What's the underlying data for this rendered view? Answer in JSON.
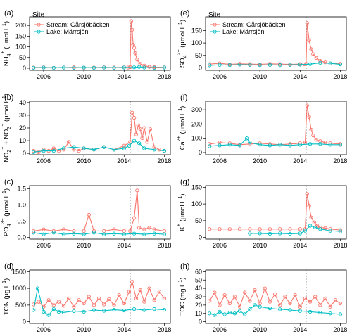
{
  "colors": {
    "stream": "#F8766D",
    "lake": "#00BFC4",
    "frame": "#000000",
    "event_line": "#000000"
  },
  "legend": {
    "title": "Site",
    "stream_label": "Stream: Gårsjöbäcken",
    "lake_label": "Lake: Märrsjön"
  },
  "chart_data": [
    {
      "type": "line",
      "label": "(a)",
      "ylabel": "NH4+ (µmol l−1)",
      "ylabel_parts": {
        "base": "NH",
        "sub": "4",
        "sup": "+",
        "unit": " (µmol l",
        "unit_sup": "−1",
        "end": ")"
      },
      "ylim": [
        -10,
        240
      ],
      "yticks": [
        0,
        50,
        100,
        150,
        200
      ],
      "xlim": [
        2004.6,
        2018.6
      ],
      "xticks": [
        2006,
        2010,
        2014,
        2018
      ],
      "event_x": 2014.6,
      "legend": "top-left",
      "series": [
        {
          "name": "Stream: Gårsjöbäcken",
          "color_key": "stream",
          "x": [
            2005,
            2006,
            2007,
            2008,
            2009,
            2010,
            2011,
            2012,
            2013,
            2014,
            2014.4,
            2014.6,
            2014.7,
            2014.8,
            2014.9,
            2015.0,
            2015.1,
            2015.3,
            2015.6,
            2016,
            2016.5,
            2017,
            2018
          ],
          "y": [
            3,
            4,
            2,
            3,
            4,
            2,
            3,
            4,
            3,
            4,
            3,
            5,
            220,
            180,
            110,
            95,
            70,
            40,
            20,
            12,
            6,
            5,
            4
          ]
        },
        {
          "name": "Lake: Märrsjön",
          "color_key": "lake",
          "x": [
            2005,
            2006,
            2007,
            2008,
            2009,
            2010,
            2011,
            2012,
            2013,
            2014,
            2015,
            2015.5,
            2016,
            2017,
            2018
          ],
          "y": [
            2,
            3,
            2,
            3,
            2,
            3,
            2,
            3,
            2,
            3,
            4,
            6,
            3,
            2,
            3
          ]
        }
      ]
    },
    {
      "type": "line",
      "label": "(b)",
      "ylabel": "NO2− + NO3− (µmol l−1)",
      "ylabel_parts": {
        "base": "NO",
        "sub": "2",
        "sup": "−",
        "mid": " + NO",
        "sub2": "3",
        "sup2": "−"
      },
      "ylim": [
        -1,
        41
      ],
      "yticks": [
        0,
        10,
        20,
        30,
        40
      ],
      "xlim": [
        2004.6,
        2018.6
      ],
      "xticks": [
        2006,
        2010,
        2014,
        2018
      ],
      "event_x": 2014.6,
      "series": [
        {
          "name": "Stream: Gårsjöbäcken",
          "color_key": "stream",
          "x": [
            2005,
            2005.5,
            2006,
            2006.5,
            2007,
            2007.5,
            2008,
            2008.5,
            2009,
            2009.5,
            2010,
            2011,
            2012,
            2013,
            2014,
            2014.6,
            2014.8,
            2015.0,
            2015.2,
            2015.4,
            2015.6,
            2015.8,
            2016.0,
            2016.3,
            2016.6,
            2017,
            2017.5,
            2018
          ],
          "y": [
            2,
            1,
            3,
            2,
            4,
            2,
            3,
            9,
            3,
            2,
            4,
            3,
            5,
            3,
            6,
            9,
            32,
            28,
            15,
            22,
            19,
            12,
            20,
            9,
            19,
            5,
            3,
            2
          ]
        },
        {
          "name": "Lake: Märrsjön",
          "color_key": "lake",
          "x": [
            2005,
            2006,
            2007,
            2008,
            2009,
            2010,
            2011,
            2012,
            2013,
            2014,
            2014.5,
            2015,
            2015.5,
            2016,
            2017,
            2018
          ],
          "y": [
            1,
            2,
            2,
            4,
            5,
            4,
            3,
            5,
            3,
            4,
            6,
            10,
            8,
            4,
            3,
            2
          ]
        }
      ]
    },
    {
      "type": "line",
      "label": "(c)",
      "ylabel": "PO43− (µmol l−1)",
      "ylabel_parts": {
        "base": "PO",
        "sub": "4",
        "sup": "3−"
      },
      "ylim": [
        -0.05,
        1.6
      ],
      "yticks": [
        0.0,
        0.5,
        1.0,
        1.5
      ],
      "xlim": [
        2004.6,
        2018.6
      ],
      "xticks": [
        2006,
        2010,
        2014,
        2018
      ],
      "event_x": 2014.6,
      "series": [
        {
          "name": "Stream: Gårsjöbäcken",
          "color_key": "stream",
          "x": [
            2005,
            2006,
            2007,
            2008,
            2009,
            2010,
            2010.5,
            2011,
            2012,
            2013,
            2014,
            2014.6,
            2015.0,
            2015.3,
            2015.5,
            2016,
            2016.5,
            2017,
            2018
          ],
          "y": [
            0.2,
            0.25,
            0.2,
            0.25,
            0.2,
            0.2,
            0.7,
            0.2,
            0.2,
            0.25,
            0.2,
            0.2,
            0.6,
            1.45,
            0.3,
            0.25,
            0.3,
            0.25,
            0.2
          ]
        },
        {
          "name": "Lake: Märrsjön",
          "color_key": "lake",
          "x": [
            2005,
            2006,
            2007,
            2008,
            2009,
            2010,
            2011,
            2012,
            2013,
            2014,
            2015,
            2016,
            2017,
            2018
          ],
          "y": [
            0.15,
            0.1,
            0.15,
            0.1,
            0.12,
            0.1,
            0.15,
            0.1,
            0.12,
            0.1,
            0.12,
            0.1,
            0.12,
            0.1
          ]
        }
      ]
    },
    {
      "type": "line",
      "label": "(d)",
      "ylabel": "TON (µg l−1)",
      "ylabel_parts": {
        "base": "TON",
        "unit": " (µg l"
      },
      "ylim": [
        -50,
        1550
      ],
      "yticks": [
        0,
        500,
        1000,
        1500
      ],
      "xlim": [
        2004.6,
        2018.6
      ],
      "xticks": [
        2006,
        2010,
        2014,
        2018
      ],
      "event_x": 2014.6,
      "series": [
        {
          "name": "Stream: Gårsjöbäcken",
          "color_key": "stream",
          "x": [
            2005,
            2005.5,
            2006,
            2006.5,
            2007,
            2007.5,
            2008,
            2008.5,
            2009,
            2009.5,
            2010,
            2010.5,
            2011,
            2011.5,
            2012,
            2012.5,
            2013,
            2013.5,
            2014,
            2014.5,
            2014.8,
            2015.2,
            2015.6,
            2016,
            2016.5,
            2017,
            2017.5,
            2018
          ],
          "y": [
            520,
            600,
            450,
            650,
            500,
            600,
            480,
            700,
            450,
            650,
            550,
            750,
            500,
            700,
            520,
            680,
            500,
            800,
            550,
            900,
            1200,
            700,
            950,
            600,
            1000,
            650,
            900,
            700
          ]
        },
        {
          "name": "Lake: Märrsjön",
          "color_key": "lake",
          "x": [
            2005,
            2005.4,
            2006,
            2006.5,
            2007,
            2007.5,
            2008,
            2009,
            2010,
            2011,
            2012,
            2013,
            2014,
            2015,
            2016,
            2017,
            2018
          ],
          "y": [
            350,
            1000,
            300,
            200,
            380,
            300,
            280,
            320,
            300,
            350,
            330,
            360,
            340,
            380,
            350,
            380,
            360
          ]
        }
      ]
    },
    {
      "type": "line",
      "label": "(e)",
      "ylabel": "SO42− (µmol l−1)",
      "ylabel_parts": {
        "base": "SO",
        "sub": "4",
        "sup": "2−"
      },
      "ylim": [
        -10,
        205
      ],
      "yticks": [
        0,
        50,
        100,
        150
      ],
      "xlim": [
        2004.6,
        2018.6
      ],
      "xticks": [
        2006,
        2010,
        2014,
        2018
      ],
      "event_x": 2014.6,
      "legend": "top-left",
      "series": [
        {
          "name": "Stream: Gårsjöbäcken",
          "color_key": "stream",
          "x": [
            2005,
            2006,
            2007,
            2008,
            2009,
            2010,
            2011,
            2012,
            2013,
            2014,
            2014.4,
            2014.6,
            2014.7,
            2014.9,
            2015.1,
            2015.3,
            2015.6,
            2016,
            2016.5,
            2017,
            2018
          ],
          "y": [
            15,
            18,
            14,
            16,
            15,
            14,
            16,
            15,
            14,
            15,
            14,
            16,
            180,
            110,
            75,
            55,
            40,
            28,
            22,
            18,
            16
          ]
        },
        {
          "name": "Lake: Märrsjön",
          "color_key": "lake",
          "x": [
            2005,
            2006,
            2007,
            2008,
            2009,
            2010,
            2011,
            2012,
            2013,
            2014,
            2015,
            2016,
            2017,
            2018
          ],
          "y": [
            10,
            12,
            11,
            13,
            12,
            11,
            12,
            11,
            12,
            13,
            15,
            20,
            18,
            14
          ]
        }
      ]
    },
    {
      "type": "line",
      "label": "(f)",
      "ylabel": "Ca2+ (µmol l−1)",
      "ylabel_parts": {
        "base": "Ca",
        "sup": "2+"
      },
      "ylim": [
        -15,
        360
      ],
      "yticks": [
        0,
        100,
        200,
        300
      ],
      "xlim": [
        2004.6,
        2018.6
      ],
      "xticks": [
        2006,
        2010,
        2014,
        2018
      ],
      "event_x": 2014.6,
      "series": [
        {
          "name": "Stream: Gårsjöbäcken",
          "color_key": "stream",
          "x": [
            2005,
            2006,
            2007,
            2008,
            2009,
            2010,
            2011,
            2012,
            2013,
            2014,
            2014.5,
            2014.7,
            2014.9,
            2015.1,
            2015.3,
            2015.6,
            2016,
            2016.5,
            2017,
            2018
          ],
          "y": [
            60,
            70,
            65,
            55,
            60,
            65,
            60,
            55,
            60,
            65,
            70,
            330,
            250,
            160,
            120,
            90,
            80,
            70,
            65,
            60
          ]
        },
        {
          "name": "Lake: Märrsjön",
          "color_key": "lake",
          "x": [
            2005,
            2006,
            2007,
            2008,
            2008.7,
            2009,
            2010,
            2011,
            2012,
            2013,
            2014,
            2015,
            2016,
            2017,
            2018
          ],
          "y": [
            45,
            50,
            55,
            50,
            100,
            70,
            55,
            50,
            55,
            50,
            55,
            60,
            60,
            55,
            55
          ]
        }
      ]
    },
    {
      "type": "line",
      "label": "(g)",
      "ylabel": "K+ (µmol l−1)",
      "ylabel_parts": {
        "base": "K",
        "sup": "+"
      },
      "ylim": [
        -5,
        155
      ],
      "yticks": [
        0,
        50,
        100,
        150
      ],
      "xlim": [
        2004.6,
        2018.6
      ],
      "xticks": [
        2006,
        2010,
        2014,
        2018
      ],
      "event_x": 2014.6,
      "series": [
        {
          "name": "Stream: Gårsjöbäcken",
          "color_key": "stream",
          "x": [
            2005,
            2006,
            2007,
            2008,
            2009,
            2010,
            2011,
            2012,
            2013,
            2014,
            2014.5,
            2014.7,
            2014.9,
            2015.1,
            2015.4,
            2015.7,
            2016,
            2016.5,
            2017,
            2018
          ],
          "y": [
            25,
            25,
            25,
            25,
            25,
            25,
            25,
            25,
            25,
            25,
            25,
            130,
            95,
            60,
            45,
            35,
            30,
            28,
            25,
            22
          ]
        },
        {
          "name": "Lake: Märrsjön",
          "color_key": "lake",
          "x": [
            2009,
            2010,
            2011,
            2012,
            2013,
            2014,
            2014.5,
            2015,
            2015.5,
            2016,
            2017,
            2018
          ],
          "y": [
            12,
            12,
            11,
            12,
            11,
            12,
            20,
            35,
            30,
            25,
            20,
            18
          ]
        }
      ]
    },
    {
      "type": "line",
      "label": "(h)",
      "ylabel": "TOC (mg l−1)",
      "ylabel_parts": {
        "base": "TOC",
        "unit": " (mg l"
      },
      "ylim": [
        -2,
        62
      ],
      "yticks": [
        0,
        10,
        20,
        30,
        40,
        50,
        60
      ],
      "xlim": [
        2004.6,
        2018.6
      ],
      "xticks": [
        2006,
        2010,
        2014,
        2018
      ],
      "event_x": 2014.6,
      "series": [
        {
          "name": "Stream: Gårsjöbäcken",
          "color_key": "stream",
          "x": [
            2005,
            2005.5,
            2006,
            2006.5,
            2007,
            2007.5,
            2008,
            2008.5,
            2009,
            2009.5,
            2010,
            2010.5,
            2011,
            2011.5,
            2012,
            2012.5,
            2013,
            2013.5,
            2014,
            2014.5,
            2015,
            2015.5,
            2016,
            2016.5,
            2017,
            2017.5,
            2018
          ],
          "y": [
            25,
            35,
            20,
            32,
            22,
            30,
            18,
            35,
            25,
            38,
            22,
            40,
            24,
            33,
            20,
            30,
            22,
            32,
            18,
            28,
            24,
            30,
            20,
            28,
            18,
            26,
            22
          ]
        },
        {
          "name": "Lake: Märrsjön",
          "color_key": "lake",
          "x": [
            2005,
            2005.5,
            2006,
            2006.5,
            2007,
            2007.5,
            2008,
            2008.5,
            2009,
            2009.5,
            2010,
            2011,
            2012,
            2013,
            2014,
            2015,
            2016,
            2017,
            2018
          ],
          "y": [
            10,
            8,
            12,
            9,
            11,
            10,
            13,
            9,
            15,
            20,
            18,
            16,
            15,
            14,
            13,
            12,
            11,
            10,
            9
          ]
        }
      ]
    }
  ]
}
